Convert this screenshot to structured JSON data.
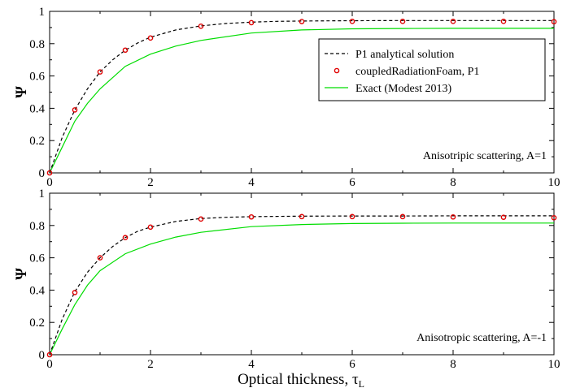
{
  "figure": {
    "xlabel_main": "Optical thickness, τ",
    "xlabel_sub": "L",
    "legend": {
      "entries": [
        {
          "label": "P1 analytical solution",
          "color": "#000000",
          "style": "dashed"
        },
        {
          "label": "coupledRadiationFoam, P1",
          "color": "#e00000",
          "style": "marker"
        },
        {
          "label": "Exact (Modest 2013)",
          "color": "#00dd00",
          "style": "solid"
        }
      ]
    }
  },
  "chart_data": [
    {
      "type": "line",
      "ylabel": "Ψ",
      "xlim": [
        0,
        10
      ],
      "ylim": [
        0,
        1
      ],
      "xticks": [
        0,
        2,
        4,
        6,
        8,
        10
      ],
      "yticks": [
        0,
        0.2,
        0.4,
        0.6,
        0.8,
        1
      ],
      "xtick_labels": [
        "0",
        "2",
        "4",
        "6",
        "8",
        "10"
      ],
      "ytick_labels": [
        "0",
        "0.2",
        "0.4",
        "0.6",
        "0.8",
        "1"
      ],
      "annotation": "Anisotripic scattering, A=1",
      "series": [
        {
          "name": "P1 analytical solution",
          "color": "#000000",
          "style": "dashed",
          "x": [
            0,
            0.25,
            0.5,
            0.75,
            1,
            1.25,
            1.5,
            1.75,
            2,
            2.5,
            3,
            3.5,
            4,
            4.5,
            5,
            6,
            7,
            8,
            9,
            10
          ],
          "y": [
            0,
            0.22,
            0.39,
            0.52,
            0.625,
            0.7,
            0.76,
            0.805,
            0.84,
            0.885,
            0.91,
            0.925,
            0.933,
            0.938,
            0.94,
            0.942,
            0.943,
            0.943,
            0.943,
            0.943
          ]
        },
        {
          "name": "coupledRadiationFoam, P1",
          "color": "#e00000",
          "style": "marker",
          "x": [
            0,
            0.5,
            1,
            1.5,
            2,
            3,
            4,
            5,
            6,
            7,
            8,
            9,
            10
          ],
          "y": [
            0,
            0.39,
            0.625,
            0.76,
            0.835,
            0.908,
            0.93,
            0.937,
            0.938,
            0.938,
            0.938,
            0.938,
            0.936
          ]
        },
        {
          "name": "Exact (Modest 2013)",
          "color": "#00dd00",
          "style": "solid",
          "x": [
            0,
            0.25,
            0.5,
            0.75,
            1,
            1.5,
            2,
            2.5,
            3,
            4,
            5,
            6,
            7,
            8,
            9,
            10
          ],
          "y": [
            0,
            0.16,
            0.32,
            0.43,
            0.52,
            0.66,
            0.735,
            0.785,
            0.82,
            0.866,
            0.885,
            0.892,
            0.894,
            0.895,
            0.895,
            0.895
          ]
        }
      ]
    },
    {
      "type": "line",
      "ylabel": "Ψ",
      "xlim": [
        0,
        10
      ],
      "ylim": [
        0,
        1
      ],
      "xticks": [
        0,
        2,
        4,
        6,
        8,
        10
      ],
      "yticks": [
        0,
        0.2,
        0.4,
        0.6,
        0.8,
        1
      ],
      "xtick_labels": [
        "0",
        "2",
        "4",
        "6",
        "8",
        "10"
      ],
      "ytick_labels": [
        "0",
        "0.2",
        "0.4",
        "0.6",
        "0.8",
        "1"
      ],
      "annotation": "Anisotropic scattering, A=-1",
      "series": [
        {
          "name": "P1 analytical solution",
          "color": "#000000",
          "style": "dashed",
          "x": [
            0,
            0.25,
            0.5,
            0.75,
            1,
            1.25,
            1.5,
            1.75,
            2,
            2.5,
            3,
            3.5,
            4,
            5,
            6,
            7,
            8,
            9,
            10
          ],
          "y": [
            0,
            0.22,
            0.39,
            0.51,
            0.6,
            0.67,
            0.725,
            0.765,
            0.79,
            0.825,
            0.843,
            0.851,
            0.855,
            0.858,
            0.859,
            0.859,
            0.86,
            0.86,
            0.86
          ]
        },
        {
          "name": "coupledRadiationFoam, P1",
          "color": "#e00000",
          "style": "marker",
          "x": [
            0,
            0.5,
            1,
            1.5,
            2,
            3,
            4,
            5,
            6,
            7,
            8,
            9,
            10
          ],
          "y": [
            0,
            0.385,
            0.6,
            0.725,
            0.79,
            0.84,
            0.853,
            0.855,
            0.855,
            0.855,
            0.853,
            0.851,
            0.848
          ]
        },
        {
          "name": "Exact (Modest 2013)",
          "color": "#00dd00",
          "style": "solid",
          "x": [
            0,
            0.25,
            0.5,
            0.75,
            1,
            1.5,
            2,
            2.5,
            3,
            4,
            5,
            6,
            7,
            8,
            9,
            10
          ],
          "y": [
            0,
            0.16,
            0.31,
            0.43,
            0.52,
            0.625,
            0.685,
            0.728,
            0.758,
            0.793,
            0.806,
            0.812,
            0.814,
            0.815,
            0.815,
            0.815
          ]
        }
      ]
    }
  ]
}
